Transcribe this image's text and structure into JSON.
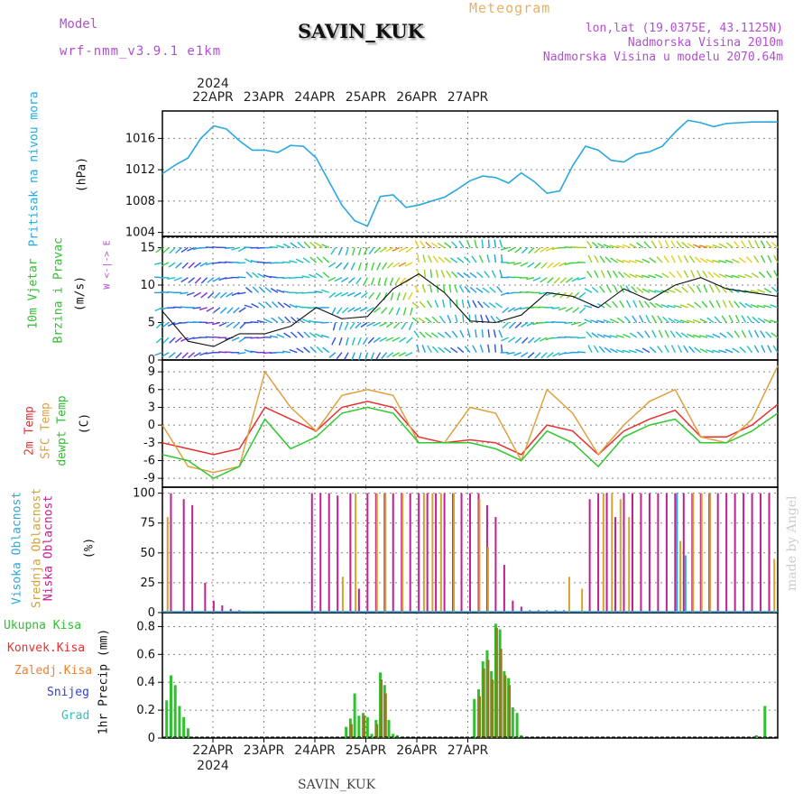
{
  "header": {
    "model_label": "Model",
    "model_name": "wrf-nmm_v3.9.1 e1km",
    "station": "SAVIN_KUK",
    "title": "Meteogram",
    "lonlat": "lon,lat (19.0375E, 43.1125N)",
    "elevation": "Nadmorska Visina 2010m",
    "model_elevation": "Nadmorska Visina u modelu 2070.64m"
  },
  "footer": {
    "station": "SAVIN_KUK",
    "credit": "made by Angel"
  },
  "colors": {
    "pressure": "#29a8e0",
    "t2m": "#e83030",
    "sfc": "#e0a040",
    "dewpt": "#30c830",
    "high": "#29a8e0",
    "mid": "#d8a030",
    "low": "#c02090",
    "total": "#30c030",
    "teal": "#1a7f8f",
    "grid": "#888888"
  },
  "dates": {
    "year": "2024",
    "days": [
      "22APR",
      "23APR",
      "24APR",
      "25APR",
      "26APR",
      "27APR"
    ]
  },
  "panels": {
    "pressure": {
      "label1": "Pritisak na nivou mora",
      "unit": "(hPa)"
    },
    "wind": {
      "label1": "10m Vjetar",
      "label2": "Brzina i Pravac",
      "unit": "(m/s)",
      "compass": "W <-|-> E"
    },
    "temp": {
      "label1": "2m Temp",
      "label2": "SFC Temp",
      "label3": "dewpt Temp",
      "unit": "(C)"
    },
    "cloud": {
      "label1": "Visoka Oblacnost",
      "label2": "Srednja Oblacnost",
      "label3": "Niska Oblacnost",
      "unit": "(%)"
    },
    "precip": {
      "labels": [
        "Ukupna Kisa",
        "Konvek.Kisa",
        "Zaledj.Kisa",
        "Snijeg",
        "Grad"
      ],
      "unit": "1hr Precip (mm)"
    }
  },
  "chart_data": [
    {
      "type": "line",
      "name": "pressure",
      "ylim": [
        1003.5,
        1019.5
      ],
      "yticks": [
        "1004",
        "1008",
        "1012",
        "1016"
      ],
      "x": [
        0,
        3,
        6,
        9,
        12,
        15,
        18,
        21,
        24,
        27,
        30,
        33,
        36,
        39,
        42,
        45,
        48,
        51,
        54,
        57,
        60,
        63,
        66,
        69,
        72,
        75,
        78,
        81,
        84,
        87,
        90,
        93,
        96,
        99,
        102,
        105,
        108,
        111,
        114,
        117,
        120,
        123,
        126,
        129,
        132,
        135,
        138,
        141,
        144
      ],
      "y": [
        1011.5,
        1012.6,
        1013.5,
        1016,
        1017.6,
        1017.2,
        1015.7,
        1014.5,
        1014.5,
        1014.2,
        1015.1,
        1015,
        1013.5,
        1010.5,
        1007.5,
        1005.5,
        1004.8,
        1008.6,
        1008.8,
        1007.2,
        1007.5,
        1008,
        1008.5,
        1009.5,
        1010.6,
        1011.2,
        1011,
        1010.3,
        1011.6,
        1010.5,
        1009,
        1009.3,
        1012.5,
        1015,
        1014.5,
        1013.2,
        1013,
        1014,
        1014.3,
        1015,
        1016.8,
        1018.3,
        1018,
        1017.5,
        1017.9,
        1018,
        1018.1,
        1018.1,
        1018.1
      ]
    },
    {
      "type": "line",
      "name": "wind_speed",
      "ylim": [
        0,
        16.5
      ],
      "yticks": [
        "0",
        "5",
        "10",
        "15"
      ],
      "x": [
        0,
        6,
        12,
        18,
        24,
        30,
        36,
        42,
        48,
        54,
        60,
        66,
        72,
        78,
        84,
        90,
        96,
        102,
        108,
        114,
        120,
        126,
        132,
        138,
        144
      ],
      "y": [
        6.5,
        2.5,
        1.8,
        3.5,
        3.5,
        4.5,
        7,
        5.5,
        5.8,
        9.5,
        11.5,
        9,
        5.2,
        5,
        6,
        9,
        8.5,
        7,
        9.5,
        8,
        10,
        11,
        9.5,
        9,
        8.5
      ]
    },
    {
      "type": "line",
      "name": "temperature",
      "ylim": [
        -10.5,
        11
      ],
      "yticks": [
        "-9",
        "-6",
        "-3",
        "0",
        "3",
        "6",
        "9"
      ],
      "x": [
        0,
        6,
        12,
        18,
        24,
        30,
        36,
        42,
        48,
        54,
        60,
        66,
        72,
        78,
        84,
        90,
        96,
        102,
        108,
        114,
        120,
        126,
        132,
        138,
        144
      ],
      "series": [
        {
          "name": "2m Temp",
          "values": [
            -3,
            -4,
            -5,
            -4,
            3,
            1,
            -1,
            3,
            4,
            3,
            -2,
            -3,
            -2.5,
            -3,
            -5,
            0,
            -1,
            -5,
            -1,
            1,
            2.5,
            -2,
            -2,
            0,
            3.5
          ]
        },
        {
          "name": "SFC Temp",
          "values": [
            0,
            -7,
            -8,
            -7,
            9,
            3,
            -1,
            5,
            6,
            5,
            -3,
            -3,
            3,
            2,
            -6,
            6,
            2,
            -5,
            0,
            4,
            6,
            -2,
            -3,
            1,
            10
          ]
        },
        {
          "name": "dewpt Temp",
          "values": [
            -5,
            -6,
            -9,
            -7,
            1,
            -4,
            -2,
            2,
            3,
            2,
            -3,
            -3,
            -3,
            -4,
            -6,
            -1,
            -3,
            -7,
            -2,
            0,
            1,
            -3,
            -3,
            -1,
            2
          ]
        }
      ]
    },
    {
      "type": "bar",
      "name": "cloud_cover",
      "ylim": [
        0,
        105
      ],
      "yticks": [
        "0",
        "25",
        "50",
        "75",
        "100"
      ],
      "series": [
        {
          "name": "Niska Oblacnost",
          "x": [
            2,
            5,
            7,
            10,
            12,
            14,
            16,
            18,
            21,
            24,
            35,
            37,
            39,
            41,
            44,
            46,
            48,
            50,
            52,
            54,
            56,
            58,
            60,
            62,
            64,
            66,
            68,
            70,
            72,
            74,
            76,
            78,
            80,
            82,
            84,
            86,
            88,
            90,
            92,
            94,
            100,
            102,
            104,
            106,
            108,
            110,
            112,
            114,
            116,
            118,
            120,
            122,
            124,
            126,
            128,
            130,
            132,
            134,
            136,
            138,
            140,
            142
          ],
          "values": [
            100,
            95,
            90,
            25,
            10,
            6,
            3,
            2,
            1,
            1,
            100,
            100,
            100,
            98,
            100,
            20,
            100,
            100,
            100,
            100,
            100,
            100,
            100,
            100,
            100,
            100,
            100,
            100,
            100,
            100,
            90,
            80,
            40,
            10,
            5,
            2,
            2,
            2,
            2,
            2,
            95,
            100,
            100,
            80,
            100,
            100,
            100,
            100,
            100,
            100,
            100,
            100,
            100,
            100,
            100,
            100,
            100,
            100,
            100,
            100,
            100,
            100
          ]
        },
        {
          "name": "Srednja Oblacnost",
          "x": [
            1,
            42,
            45,
            50,
            52,
            56,
            61,
            63,
            65,
            68,
            74,
            76,
            95,
            98,
            103,
            105,
            107,
            109,
            121,
            124,
            126,
            128,
            143
          ],
          "values": [
            80,
            30,
            100,
            100,
            100,
            100,
            100,
            100,
            100,
            100,
            95,
            55,
            30,
            20,
            100,
            100,
            95,
            80,
            60,
            100,
            100,
            100,
            45
          ]
        },
        {
          "name": "Visoka Oblacnost",
          "x": [
            120,
            122
          ],
          "values": [
            100,
            48
          ]
        }
      ]
    },
    {
      "type": "bar",
      "name": "precipitation",
      "ylim": [
        0,
        0.9
      ],
      "yticks": [
        "0",
        "0.2",
        "0.4",
        "0.6",
        "0.8"
      ],
      "series": [
        {
          "name": "Ukupna Kisa",
          "x": [
            1,
            2,
            3,
            4,
            5,
            6,
            43,
            44,
            45,
            46,
            47,
            48,
            49,
            50,
            51,
            52,
            53,
            54,
            55,
            73,
            74,
            75,
            76,
            77,
            78,
            79,
            80,
            81,
            82,
            83,
            84,
            139,
            141
          ],
          "values": [
            0.27,
            0.45,
            0.38,
            0.23,
            0.15,
            0.07,
            0.08,
            0.14,
            0.32,
            0.16,
            0.18,
            0.15,
            0.03,
            0.13,
            0.47,
            0.38,
            0.13,
            0.03,
            0.02,
            0.28,
            0.35,
            0.55,
            0.63,
            0.48,
            0.82,
            0.78,
            0.48,
            0.43,
            0.22,
            0.18,
            0.02,
            0.02,
            0.23
          ]
        },
        {
          "name": "Konvek.Kisa",
          "x": [
            44,
            47,
            50,
            51,
            52,
            74,
            75,
            76,
            77,
            78,
            79,
            80,
            81
          ],
          "values": [
            0.1,
            0.16,
            0.1,
            0.42,
            0.32,
            0.3,
            0.5,
            0.56,
            0.42,
            0.79,
            0.64,
            0.45,
            0.38
          ]
        }
      ]
    }
  ]
}
